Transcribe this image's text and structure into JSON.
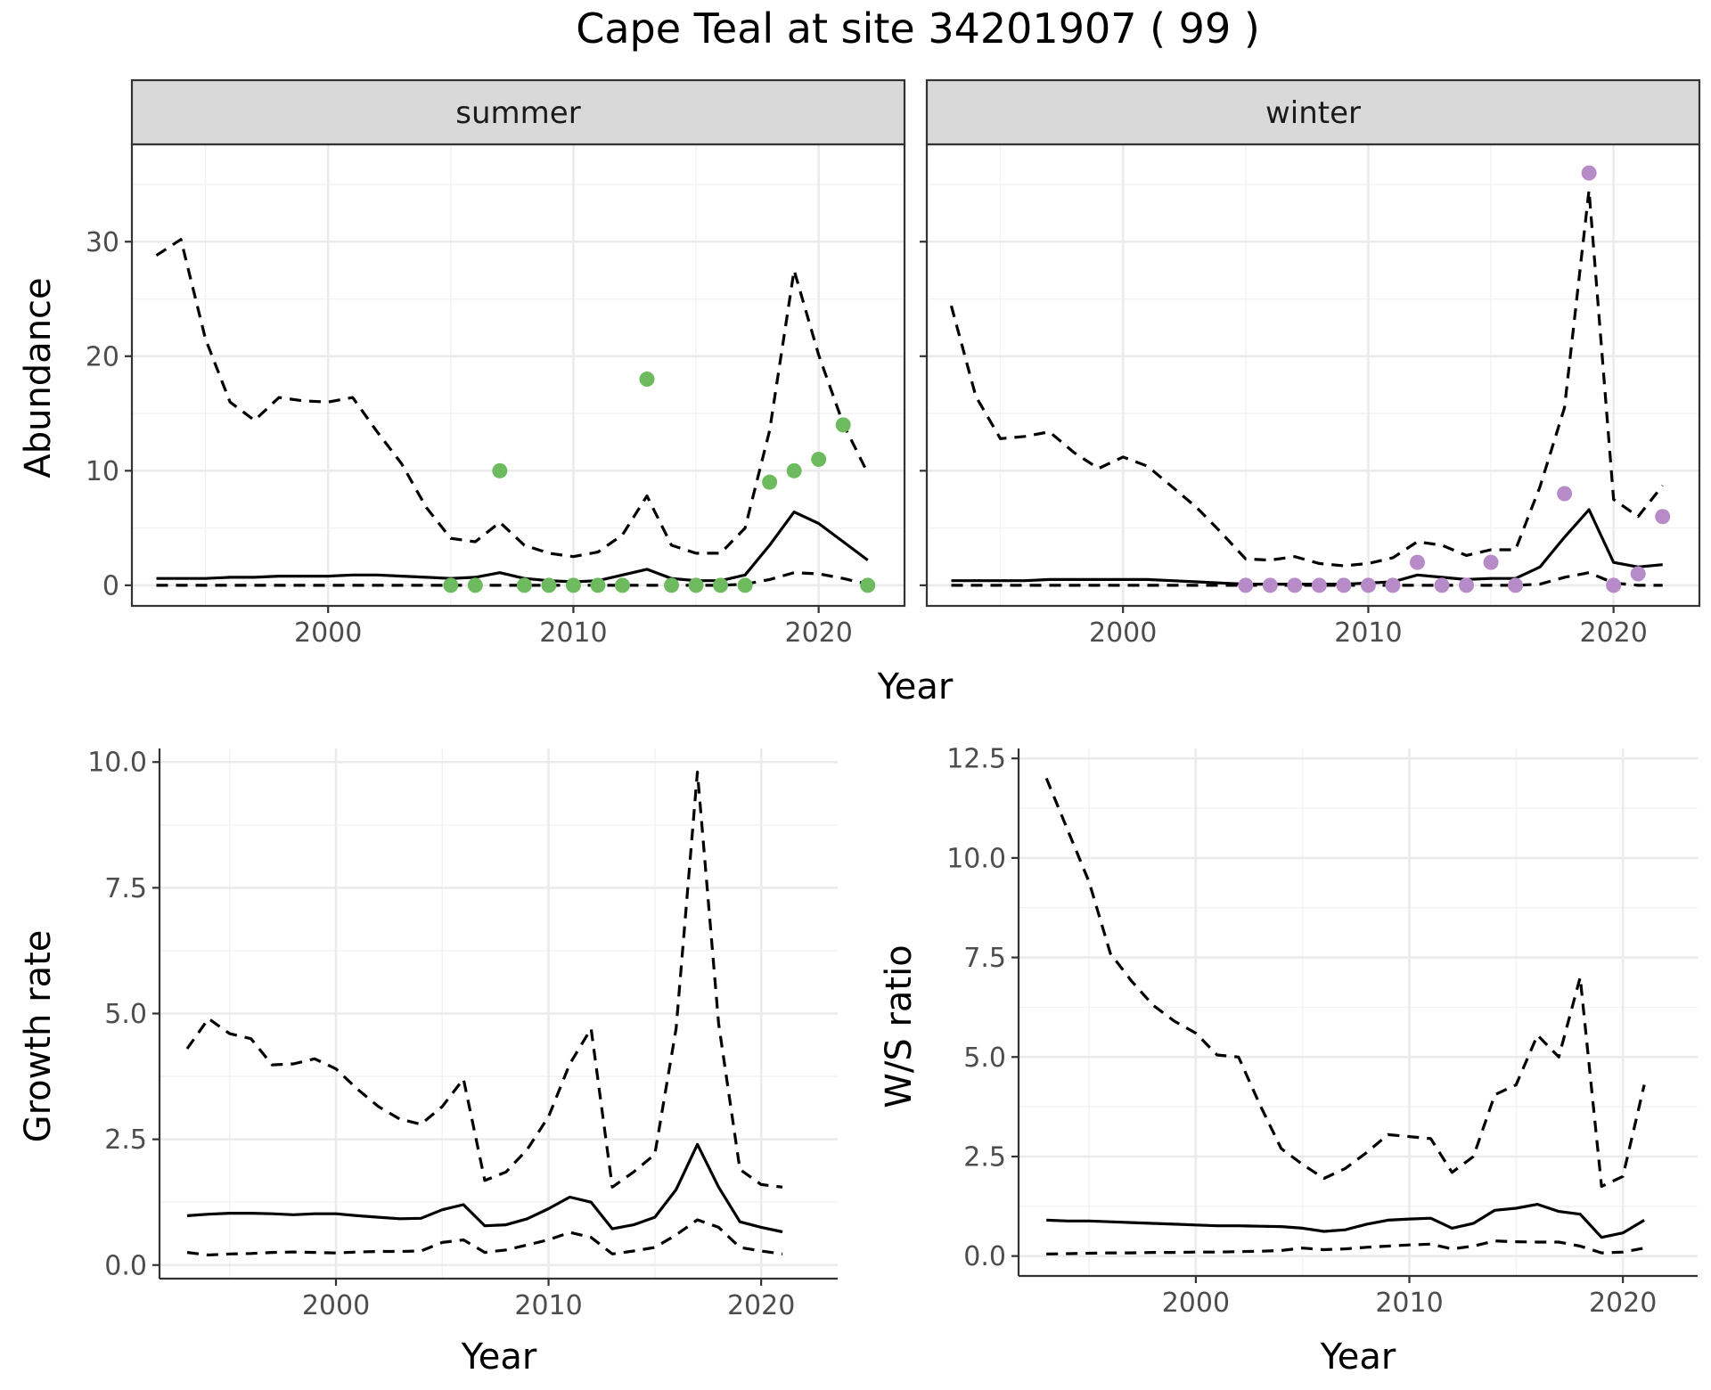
{
  "title": "Cape Teal at site 34201907 ( 99 )",
  "colors": {
    "summer_points": "#6dbb5e",
    "winter_points": "#b68bc8",
    "lines": "#000000"
  },
  "chart_data": [
    {
      "type": "line",
      "panel": "summer",
      "strip": "summer",
      "xlabel": "Year",
      "ylabel": "Abundance",
      "xlim": [
        1992,
        2023.5
      ],
      "ylim": [
        -1.8,
        38.5
      ],
      "xticks": [
        2000,
        2010,
        2020
      ],
      "xtick_labels": [
        "2000",
        "2010",
        "2020"
      ],
      "yticks": [
        0,
        10,
        20,
        30
      ],
      "ytick_labels": [
        "0",
        "10",
        "20",
        "30"
      ],
      "grid": true,
      "years": [
        1993,
        1994,
        1995,
        1996,
        1997,
        1998,
        1999,
        2000,
        2001,
        2002,
        2003,
        2004,
        2005,
        2006,
        2007,
        2008,
        2009,
        2010,
        2011,
        2012,
        2013,
        2014,
        2015,
        2016,
        2017,
        2018,
        2019,
        2020,
        2021,
        2022
      ],
      "series": [
        {
          "role": "estimate",
          "style": "solid",
          "values": [
            0.6,
            0.6,
            0.6,
            0.7,
            0.7,
            0.8,
            0.8,
            0.8,
            0.9,
            0.9,
            0.8,
            0.7,
            0.6,
            0.7,
            1.1,
            0.6,
            0.4,
            0.3,
            0.4,
            0.9,
            1.4,
            0.6,
            0.4,
            0.4,
            0.9,
            3.5,
            6.4,
            5.4,
            3.8,
            2.2
          ]
        },
        {
          "role": "upper",
          "style": "dashed",
          "values": [
            28.8,
            30.2,
            21.5,
            16.0,
            14.4,
            16.4,
            16.1,
            16.0,
            16.4,
            13.4,
            10.6,
            6.8,
            4.1,
            3.8,
            5.5,
            3.5,
            2.8,
            2.5,
            2.9,
            4.4,
            7.8,
            3.5,
            2.8,
            2.8,
            5.0,
            13.5,
            27.5,
            20.1,
            14.1,
            9.8
          ]
        },
        {
          "role": "lower",
          "style": "dashed",
          "values": [
            0,
            0,
            0,
            0,
            0,
            0,
            0,
            0,
            0,
            0,
            0,
            0,
            0,
            0,
            0,
            0,
            0,
            0,
            0,
            0,
            0,
            0,
            0,
            0,
            0.1,
            0.5,
            1.1,
            1.0,
            0.6,
            0.1
          ]
        }
      ],
      "points": {
        "color": "#6dbb5e",
        "years": [
          2005,
          2006,
          2007,
          2008,
          2009,
          2010,
          2011,
          2012,
          2013,
          2014,
          2015,
          2016,
          2017,
          2018,
          2019,
          2020,
          2021,
          2022
        ],
        "values": [
          0,
          0,
          10,
          0,
          0,
          0,
          0,
          0,
          18,
          0,
          0,
          0,
          0,
          9,
          10,
          11,
          14,
          0
        ]
      }
    },
    {
      "type": "line",
      "panel": "winter",
      "strip": "winter",
      "xlabel": "",
      "ylabel": "",
      "xlim": [
        1992,
        2023.5
      ],
      "ylim": [
        -1.8,
        38.5
      ],
      "xticks": [
        2000,
        2010,
        2020
      ],
      "xtick_labels": [
        "2000",
        "2010",
        "2020"
      ],
      "yticks": [
        0,
        10,
        20,
        30
      ],
      "ytick_labels": [],
      "grid": true,
      "years": [
        1993,
        1994,
        1995,
        1996,
        1997,
        1998,
        1999,
        2000,
        2001,
        2002,
        2003,
        2004,
        2005,
        2006,
        2007,
        2008,
        2009,
        2010,
        2011,
        2012,
        2013,
        2014,
        2015,
        2016,
        2017,
        2018,
        2019,
        2020,
        2021,
        2022
      ],
      "series": [
        {
          "role": "estimate",
          "style": "solid",
          "values": [
            0.4,
            0.4,
            0.4,
            0.4,
            0.5,
            0.5,
            0.5,
            0.5,
            0.5,
            0.4,
            0.3,
            0.2,
            0.1,
            0.1,
            0.1,
            0.1,
            0.1,
            0.2,
            0.3,
            0.9,
            0.7,
            0.5,
            0.6,
            0.6,
            1.6,
            4.2,
            6.6,
            2.0,
            1.6,
            1.8
          ]
        },
        {
          "role": "upper",
          "style": "dashed",
          "values": [
            24.4,
            16.5,
            12.8,
            13.0,
            13.4,
            11.6,
            10.2,
            11.2,
            10.4,
            8.6,
            6.8,
            4.6,
            2.3,
            2.2,
            2.5,
            1.9,
            1.7,
            1.9,
            2.4,
            3.8,
            3.5,
            2.6,
            3.1,
            3.1,
            8.6,
            15.5,
            34.5,
            7.5,
            6.0,
            8.7
          ]
        },
        {
          "role": "lower",
          "style": "dashed",
          "values": [
            0,
            0,
            0,
            0,
            0,
            0,
            0,
            0,
            0,
            0,
            0,
            0,
            0,
            0,
            0,
            0,
            0,
            0,
            0,
            0,
            0,
            0,
            0,
            0,
            0.1,
            0.7,
            1.1,
            0.2,
            0,
            0
          ]
        }
      ],
      "points": {
        "color": "#b68bc8",
        "years": [
          2005,
          2006,
          2007,
          2008,
          2009,
          2010,
          2011,
          2012,
          2013,
          2014,
          2015,
          2016,
          2018,
          2019,
          2020,
          2021,
          2022
        ],
        "values": [
          0,
          0,
          0,
          0,
          0,
          0,
          0,
          2,
          0,
          0,
          2,
          0,
          8,
          36,
          0,
          1,
          6
        ]
      }
    },
    {
      "type": "line",
      "panel": "growth",
      "xlabel": "Year",
      "ylabel": "Growth rate",
      "xlim": [
        1991.7,
        2023.6
      ],
      "ylim": [
        -0.27,
        10.27
      ],
      "xticks": [
        2000,
        2010,
        2020
      ],
      "xtick_labels": [
        "2000",
        "2010",
        "2020"
      ],
      "yticks": [
        0,
        2.5,
        5,
        7.5,
        10
      ],
      "ytick_labels": [
        "0.0",
        "2.5",
        "5.0",
        "7.5",
        "10.0"
      ],
      "grid": true,
      "years": [
        1993,
        1994,
        1995,
        1996,
        1997,
        1998,
        1999,
        2000,
        2001,
        2002,
        2003,
        2004,
        2005,
        2006,
        2007,
        2008,
        2009,
        2010,
        2011,
        2012,
        2013,
        2014,
        2015,
        2016,
        2017,
        2018,
        2019,
        2020,
        2021
      ],
      "series": [
        {
          "role": "estimate",
          "style": "solid",
          "values": [
            0.98,
            1.01,
            1.03,
            1.03,
            1.02,
            1.0,
            1.02,
            1.02,
            0.98,
            0.95,
            0.92,
            0.93,
            1.1,
            1.2,
            0.78,
            0.8,
            0.92,
            1.12,
            1.35,
            1.25,
            0.72,
            0.8,
            0.95,
            1.5,
            2.4,
            1.55,
            0.86,
            0.75,
            0.66
          ]
        },
        {
          "role": "upper",
          "style": "dashed",
          "values": [
            4.3,
            4.9,
            4.6,
            4.5,
            3.98,
            4.0,
            4.1,
            3.9,
            3.5,
            3.15,
            2.9,
            2.8,
            3.15,
            3.7,
            1.68,
            1.85,
            2.3,
            2.95,
            4.0,
            4.7,
            1.55,
            1.85,
            2.2,
            4.7,
            9.8,
            4.8,
            1.9,
            1.6,
            1.55
          ]
        },
        {
          "role": "lower",
          "style": "dashed",
          "values": [
            0.25,
            0.2,
            0.22,
            0.23,
            0.25,
            0.26,
            0.25,
            0.24,
            0.26,
            0.27,
            0.27,
            0.28,
            0.45,
            0.5,
            0.25,
            0.3,
            0.4,
            0.5,
            0.65,
            0.55,
            0.22,
            0.28,
            0.35,
            0.6,
            0.9,
            0.75,
            0.35,
            0.28,
            0.22
          ]
        }
      ]
    },
    {
      "type": "line",
      "panel": "ratio",
      "xlabel": "Year",
      "ylabel": "W/S ratio",
      "xlim": [
        1991.7,
        2023.5
      ],
      "ylim": [
        -0.5,
        12.75
      ],
      "xticks": [
        2000,
        2010,
        2020
      ],
      "xtick_labels": [
        "2000",
        "2010",
        "2020"
      ],
      "yticks": [
        0,
        2.5,
        5,
        7.5,
        10,
        12.5
      ],
      "ytick_labels": [
        "0.0",
        "2.5",
        "5.0",
        "7.5",
        "10.0",
        "12.5"
      ],
      "grid": true,
      "years": [
        1993,
        1994,
        1995,
        1996,
        1997,
        1998,
        1999,
        2000,
        2001,
        2002,
        2003,
        2004,
        2005,
        2006,
        2007,
        2008,
        2009,
        2010,
        2011,
        2012,
        2013,
        2014,
        2015,
        2016,
        2017,
        2018,
        2019,
        2020,
        2021
      ],
      "series": [
        {
          "role": "estimate",
          "style": "solid",
          "values": [
            0.9,
            0.88,
            0.88,
            0.86,
            0.84,
            0.82,
            0.8,
            0.78,
            0.76,
            0.76,
            0.75,
            0.74,
            0.7,
            0.62,
            0.66,
            0.8,
            0.9,
            0.93,
            0.95,
            0.7,
            0.82,
            1.15,
            1.2,
            1.3,
            1.12,
            1.05,
            0.47,
            0.58,
            0.9
          ]
        },
        {
          "role": "upper",
          "style": "dashed",
          "values": [
            12.0,
            10.7,
            9.4,
            7.6,
            6.9,
            6.3,
            5.9,
            5.6,
            5.05,
            5.0,
            3.8,
            2.7,
            2.3,
            1.95,
            2.2,
            2.6,
            3.05,
            3.0,
            2.95,
            2.1,
            2.5,
            4.05,
            4.3,
            5.55,
            5.0,
            7.0,
            1.75,
            2.0,
            4.3
          ]
        },
        {
          "role": "lower",
          "style": "dashed",
          "values": [
            0.05,
            0.06,
            0.07,
            0.08,
            0.08,
            0.09,
            0.09,
            0.1,
            0.1,
            0.11,
            0.12,
            0.14,
            0.2,
            0.16,
            0.18,
            0.22,
            0.25,
            0.28,
            0.3,
            0.18,
            0.25,
            0.38,
            0.36,
            0.35,
            0.35,
            0.25,
            0.08,
            0.1,
            0.2
          ]
        }
      ]
    }
  ]
}
